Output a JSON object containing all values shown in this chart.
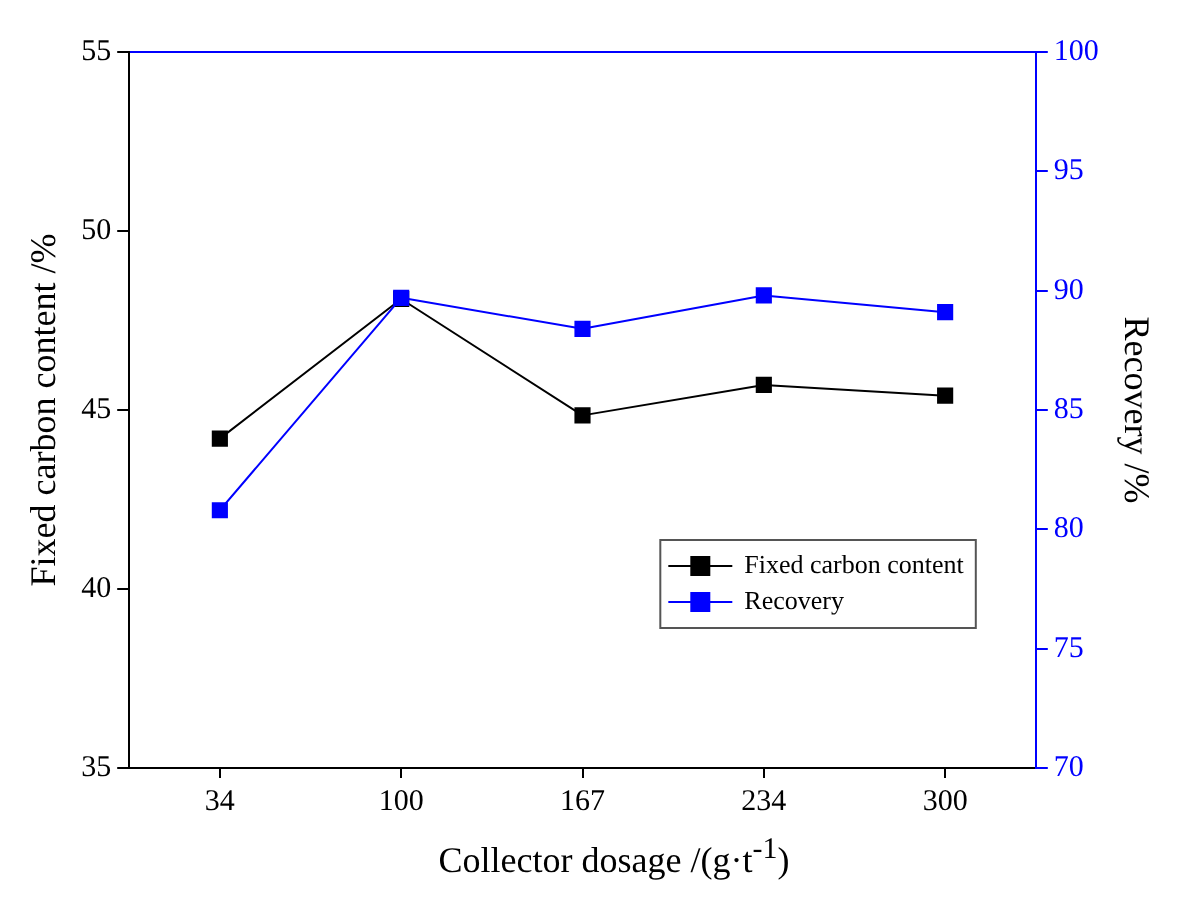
{
  "chart_data": {
    "type": "line",
    "xlabel": "Collector dosage /(g·t$^{-1}$)",
    "ylabel": "Fixed carbon content /%",
    "y2label": "Recovery /%",
    "categories": [
      "34",
      "100",
      "167",
      "234",
      "300"
    ],
    "series": [
      {
        "name": "Fixed carbon content",
        "color": "#000000",
        "values": [
          44.2,
          48.1,
          44.85,
          45.7,
          45.4
        ]
      },
      {
        "name": "Recovery",
        "color": "#0000ff",
        "axis": "y2",
        "values": [
          80.8,
          89.7,
          88.4,
          89.8,
          89.1
        ]
      }
    ],
    "ylim": [
      35,
      55
    ],
    "yticks": [
      35,
      40,
      45,
      50,
      55
    ],
    "y2lim": [
      70,
      100
    ],
    "y2ticks": [
      70,
      75,
      80,
      85,
      90,
      95,
      100
    ],
    "marker": "square",
    "line_style": "solid",
    "grid": false,
    "legend": "bottom right"
  }
}
